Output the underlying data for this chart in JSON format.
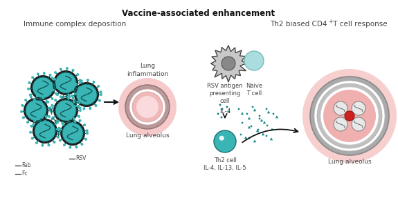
{
  "title": "Vaccine-associated enhancement",
  "subtitle_left": "Immune complex deposition",
  "subtitle_right_pre": "Th2 biased CD4",
  "subtitle_right_post": " T cell response",
  "label_fab": "Fab",
  "label_fc": "Fc",
  "label_rsv": "RSV",
  "label_lung_inflammation": "Lung\ninflammation",
  "label_lung_alveolus_left": "Lung alveolus",
  "label_rsv_antigen": "RSV antigen\npresenting\ncell",
  "label_naive_t": "Naive\nT cell",
  "label_il4": "IL-4",
  "label_th2": "Th2 cell\nIL-4, IL-13, IL-5",
  "label_lung_alveolus_right": "Lung alveolus",
  "color_teal": "#3ab5b5",
  "color_dark_teal": "#1a8888",
  "color_pink_glow": "#f0a0a0",
  "color_gray_ring": "#b0b0b0",
  "color_white": "#ffffff",
  "color_red": "#cc2222",
  "color_text": "#444444",
  "color_black": "#111111",
  "color_light_gray": "#cccccc",
  "color_dark_gray": "#555555",
  "background": "#ffffff",
  "figsize": [
    5.75,
    2.87
  ],
  "dpi": 100
}
